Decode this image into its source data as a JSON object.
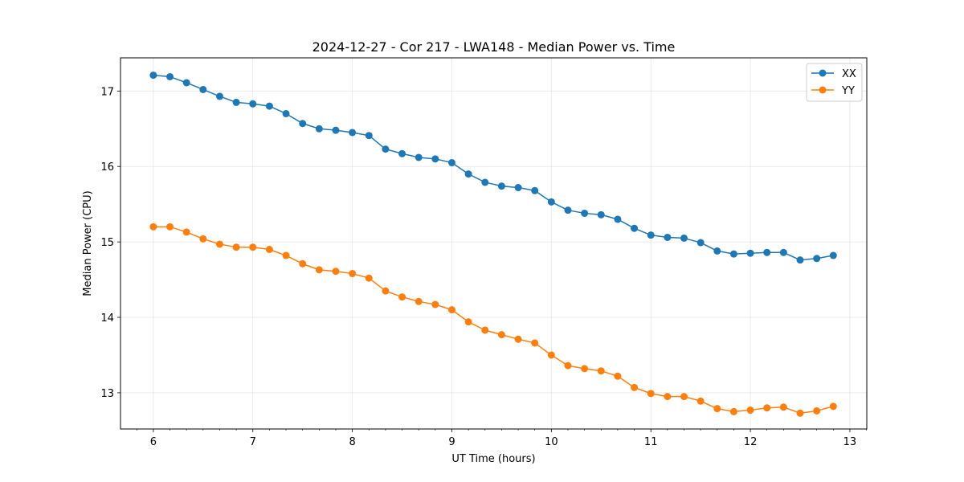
{
  "chart_data": {
    "type": "line",
    "title": "2024-12-27 - Cor 217 - LWA148 - Median Power vs. Time",
    "xlabel": "UT Time (hours)",
    "ylabel": "Median Power (CPU)",
    "xlim": [
      5.67,
      13.17
    ],
    "ylim": [
      12.52,
      17.44
    ],
    "xticks": [
      6,
      7,
      8,
      9,
      10,
      11,
      12,
      13
    ],
    "xtick_labels": [
      "6",
      "7",
      "8",
      "9",
      "10",
      "11",
      "12",
      "13"
    ],
    "yticks": [
      13,
      14,
      15,
      16,
      17
    ],
    "ytick_labels": [
      "13",
      "14",
      "15",
      "16",
      "17"
    ],
    "grid": true,
    "legend_position": "top-right",
    "x": [
      6.0,
      6.1667,
      6.3333,
      6.5,
      6.6667,
      6.8333,
      7.0,
      7.1667,
      7.3333,
      7.5,
      7.6667,
      7.8333,
      8.0,
      8.1667,
      8.3333,
      8.5,
      8.6667,
      8.8333,
      9.0,
      9.1667,
      9.3333,
      9.5,
      9.6667,
      9.8333,
      10.0,
      10.1667,
      10.3333,
      10.5,
      10.6667,
      10.8333,
      11.0,
      11.1667,
      11.3333,
      11.5,
      11.6667,
      11.8333,
      12.0,
      12.1667,
      12.3333,
      12.5,
      12.6667,
      12.8333
    ],
    "series": [
      {
        "name": "XX",
        "color": "#1f77b4",
        "values": [
          17.21,
          17.19,
          17.11,
          17.02,
          16.93,
          16.85,
          16.83,
          16.8,
          16.7,
          16.57,
          16.5,
          16.48,
          16.45,
          16.41,
          16.23,
          16.17,
          16.12,
          16.1,
          16.05,
          15.9,
          15.79,
          15.74,
          15.72,
          15.68,
          15.53,
          15.42,
          15.38,
          15.36,
          15.3,
          15.18,
          15.09,
          15.06,
          15.05,
          14.99,
          14.88,
          14.84,
          14.85,
          14.86,
          14.86,
          14.76,
          14.78,
          14.82
        ]
      },
      {
        "name": "YY",
        "color": "#ff7f0e",
        "values": [
          15.2,
          15.2,
          15.13,
          15.04,
          14.97,
          14.93,
          14.93,
          14.9,
          14.82,
          14.71,
          14.63,
          14.61,
          14.58,
          14.52,
          14.35,
          14.27,
          14.21,
          14.17,
          14.1,
          13.94,
          13.83,
          13.77,
          13.71,
          13.66,
          13.5,
          13.36,
          13.32,
          13.29,
          13.22,
          13.07,
          12.99,
          12.95,
          12.95,
          12.89,
          12.79,
          12.75,
          12.77,
          12.8,
          12.81,
          12.73,
          12.76,
          12.82
        ]
      }
    ]
  }
}
